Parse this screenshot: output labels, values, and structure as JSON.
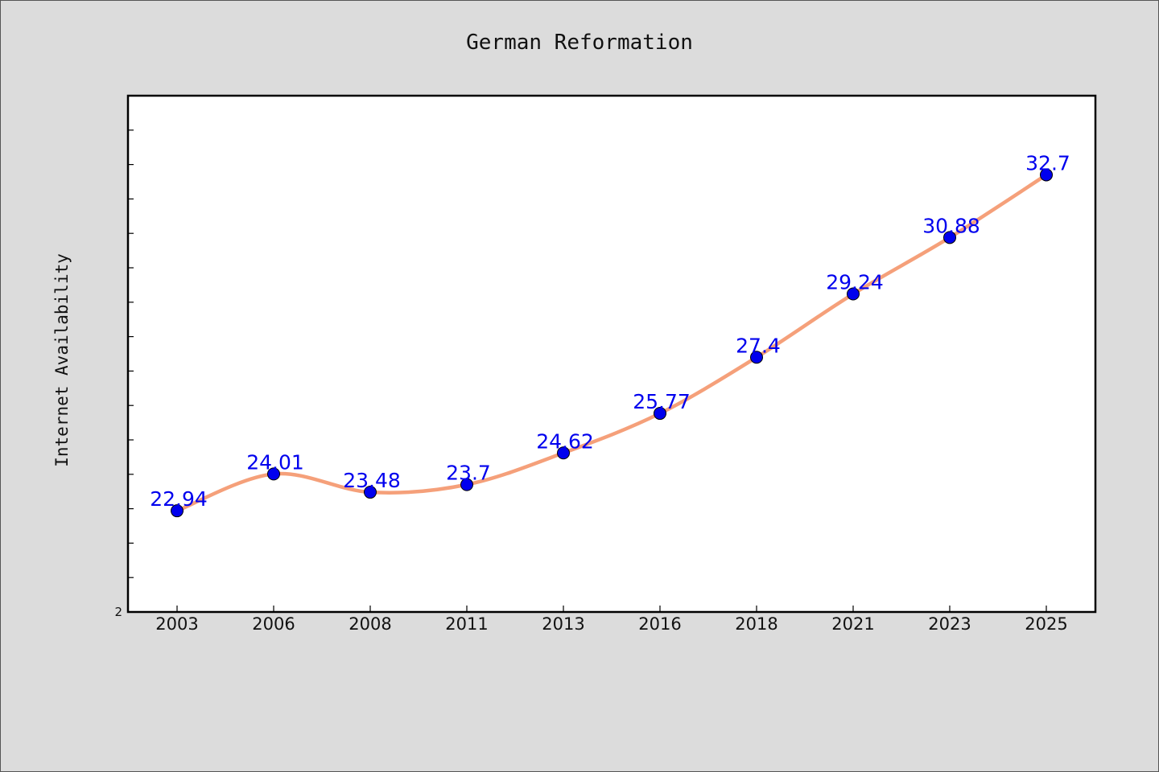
{
  "chart_data": {
    "type": "line",
    "title": "German Reformation",
    "ylabel": "Internet Availability",
    "xlabel": "",
    "categories": [
      "2003",
      "2006",
      "2008",
      "2011",
      "2013",
      "2016",
      "2018",
      "2021",
      "2023",
      "2025"
    ],
    "series": [
      {
        "values": [
          22.94,
          24.01,
          23.48,
          23.7,
          24.62,
          25.77,
          27.4,
          29.24,
          30.88,
          32.7
        ]
      }
    ],
    "data_labels": [
      "22.94",
      "24.01",
      "23.48",
      "23.7",
      "24.62",
      "25.77",
      "27.4",
      "29.24",
      "30.88",
      "32.7"
    ],
    "y_tick_label_bottom": "2",
    "ylim": [
      20,
      35
    ],
    "grid": false,
    "legend": "none",
    "colors": {
      "line": "#f5a07a",
      "marker": "#0000ee",
      "data_label": "#0000ee",
      "plot_background": "#ffffff",
      "page_background": "#dcdcdc"
    }
  }
}
